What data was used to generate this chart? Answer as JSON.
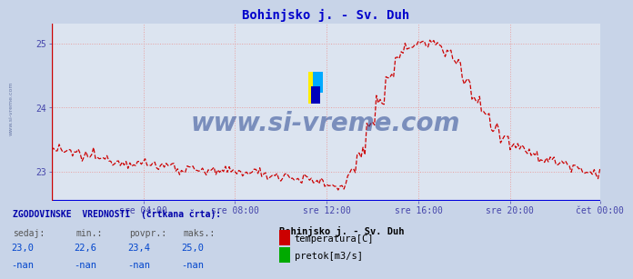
{
  "title": "Bohinjsko j. - Sv. Duh",
  "title_color": "#0000cc",
  "background_color": "#c8d4e8",
  "plot_bg_color": "#dce4f0",
  "grid_color": "#e8a0a0",
  "line_color": "#cc0000",
  "axis_label_color": "#4444aa",
  "x_tick_labels": [
    "sre 04:00",
    "sre 08:00",
    "sre 12:00",
    "sre 16:00",
    "sre 20:00",
    "čet 00:00"
  ],
  "x_tick_positions": [
    48,
    96,
    144,
    192,
    240,
    287
  ],
  "ylim": [
    22.55,
    25.3
  ],
  "yticks": [
    23,
    24,
    25
  ],
  "n_points": 288,
  "watermark": "www.si-vreme.com",
  "watermark_color": "#1a3a8a",
  "legend_title": "ZGODOVINSKE  VREDNOSTI  (črtkana črta):",
  "legend_col_headers": [
    "sedaj:",
    "min.:",
    "povpr.:",
    "maks.:"
  ],
  "legend_vals_temp": [
    "23,0",
    "22,6",
    "23,4",
    "25,0"
  ],
  "legend_vals_flow": [
    "-nan",
    "-nan",
    "-nan",
    "-nan"
  ],
  "legend_station": "Bohinjsko j. - Sv. Duh",
  "legend_temp_label": "temperatura[C]",
  "legend_flow_label": "pretok[m3/s]",
  "legend_temp_color": "#cc0000",
  "legend_flow_color": "#00aa00",
  "bottom_line_color": "#0000dd",
  "left_axis_color": "#cc0000",
  "watermark_logo_yellow": "#ffee00",
  "watermark_logo_blue": "#00aaff",
  "watermark_logo_darkblue": "#0000bb"
}
